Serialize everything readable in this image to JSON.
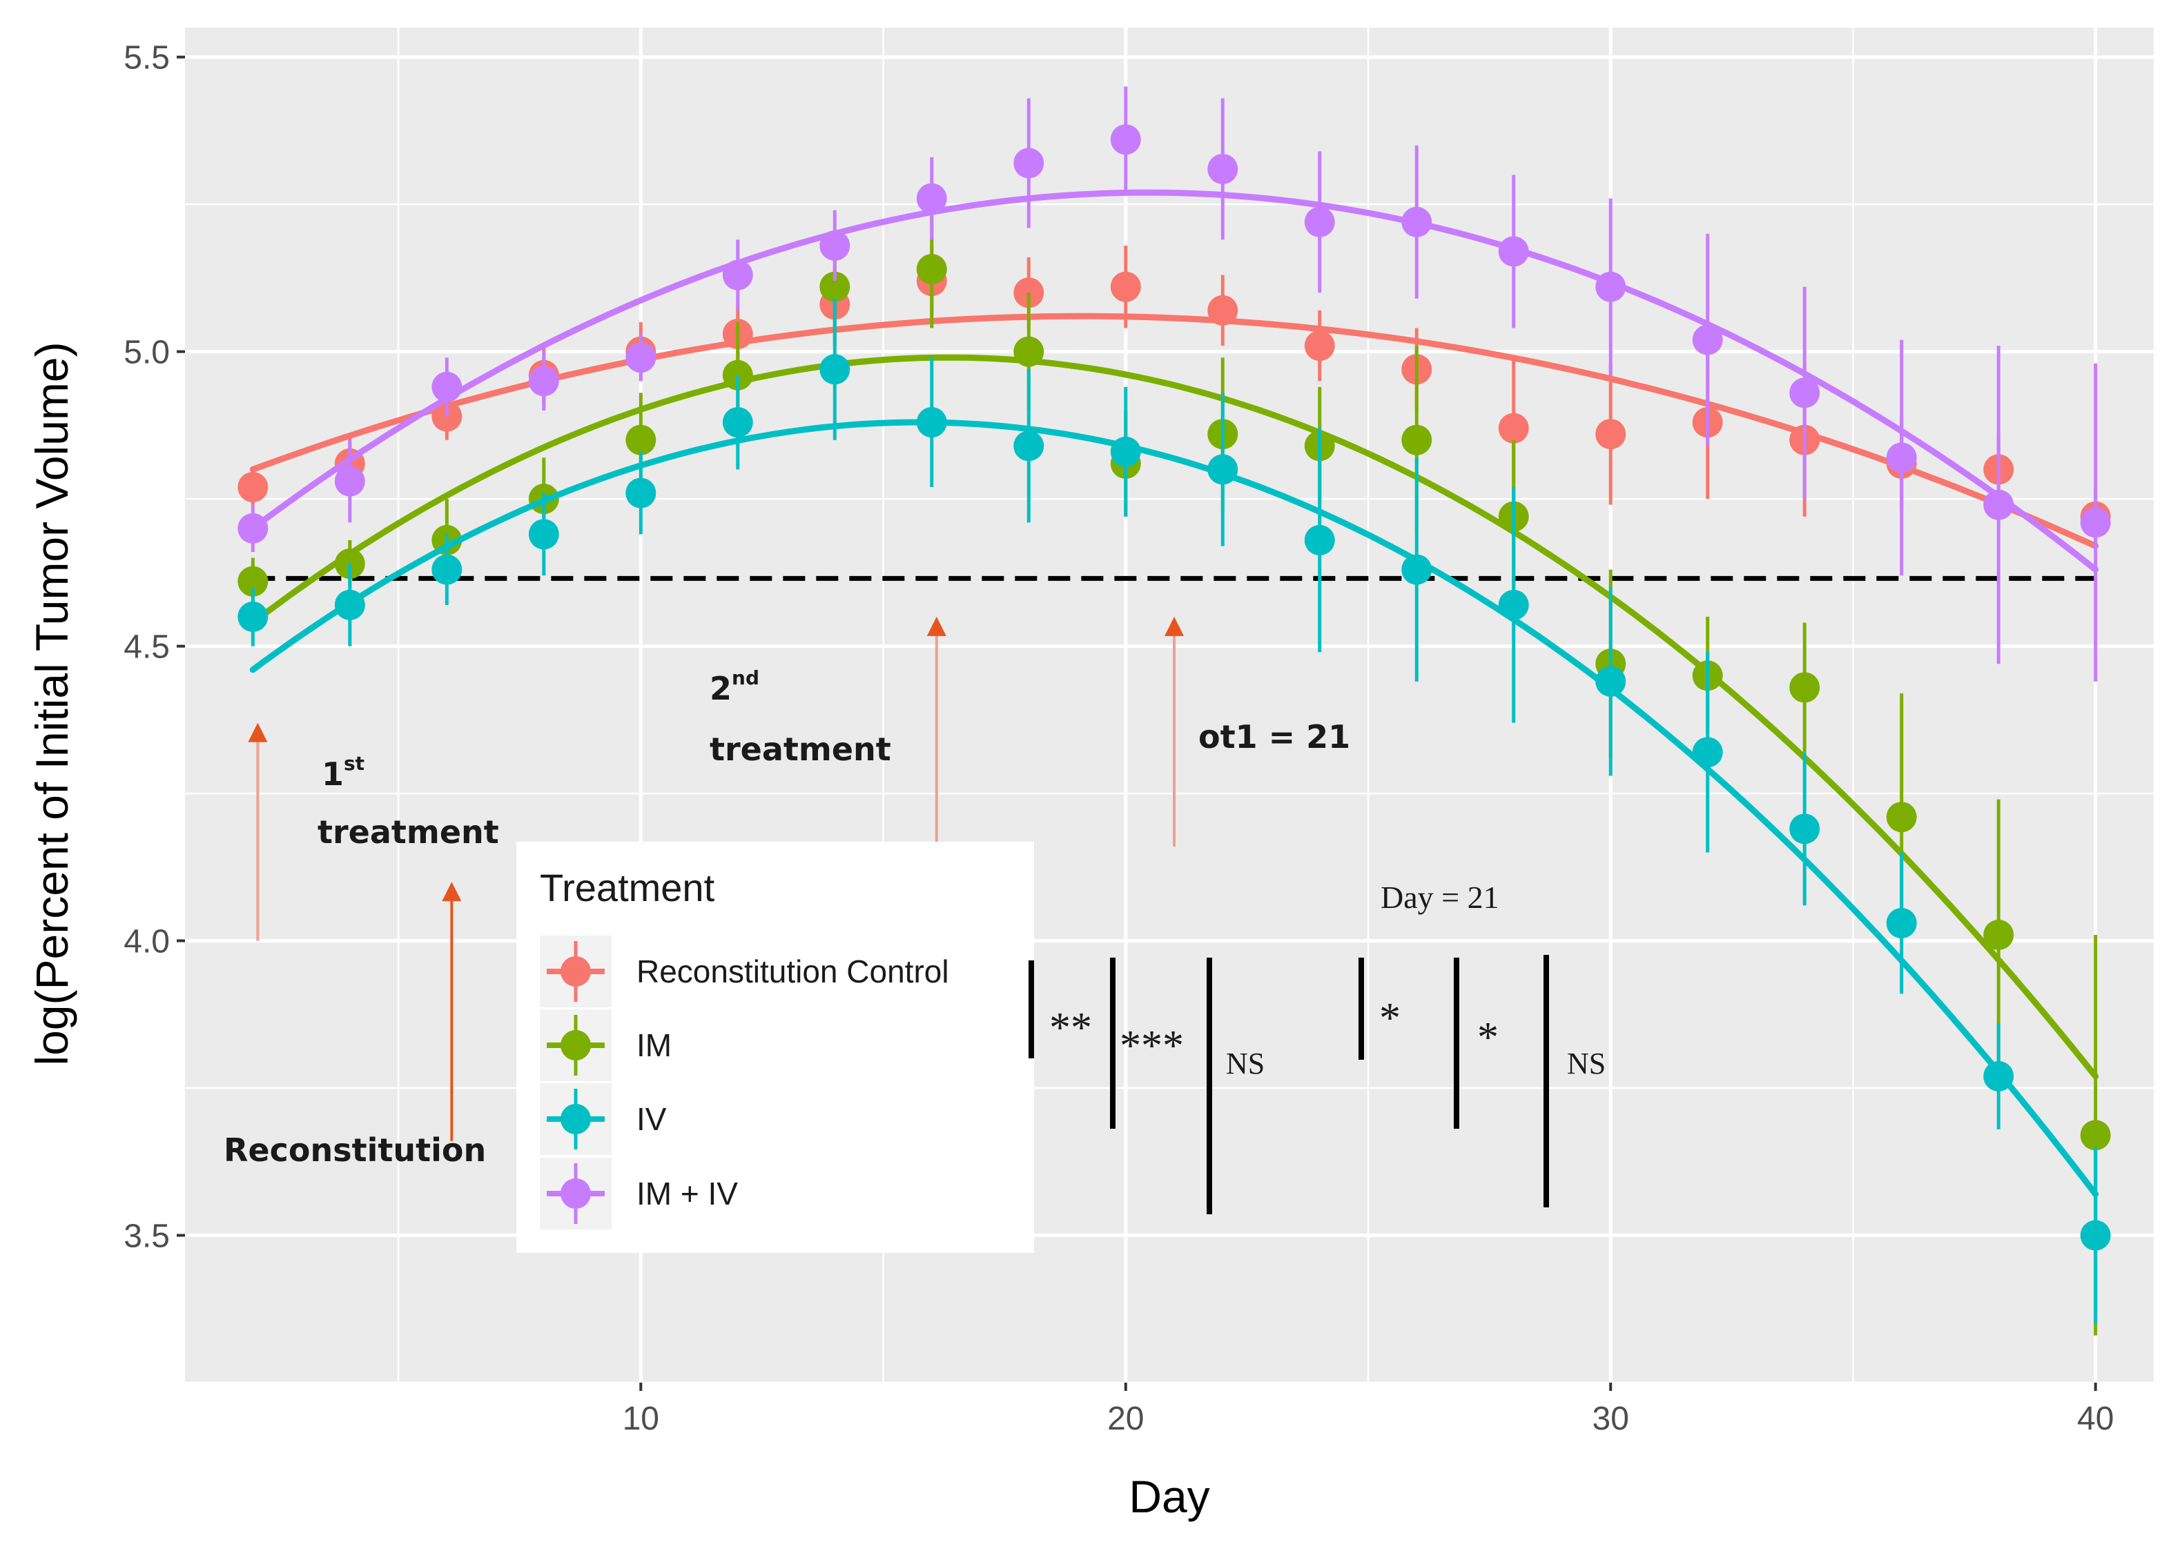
{
  "chart_data": {
    "type": "scatter",
    "xlabel": "Day",
    "ylabel": "log(Percent of Initial Tumor Volume)",
    "xlim": [
      0.6,
      41.2
    ],
    "ylim": [
      3.25,
      5.55
    ],
    "xticks": [
      10,
      20,
      30,
      40
    ],
    "yticks": [
      3.5,
      4.0,
      4.5,
      5.0,
      5.5
    ],
    "xtick_labels": [
      "10",
      "20",
      "30",
      "40"
    ],
    "ytick_labels": [
      "3.5",
      "4.0",
      "4.5",
      "5.0",
      "5.5"
    ],
    "grid": true,
    "reference_line": {
      "y": 4.615,
      "style": "dashed",
      "color": "#000000"
    },
    "legend": {
      "title": "Treatment",
      "position": "lower-left",
      "entries": [
        "Reconstitution Control",
        "IM",
        "IV",
        "IM + IV"
      ]
    },
    "series": [
      {
        "name": "Reconstitution Control",
        "color": "#F8766D",
        "x": [
          2,
          4,
          6,
          8,
          10,
          12,
          14,
          16,
          18,
          20,
          22,
          24,
          26,
          28,
          30,
          32,
          34,
          36,
          38,
          40
        ],
        "y": [
          4.77,
          4.81,
          4.89,
          4.96,
          5.0,
          5.03,
          5.08,
          5.12,
          5.1,
          5.11,
          5.07,
          5.01,
          4.97,
          4.87,
          4.86,
          4.88,
          4.85,
          4.81,
          4.8,
          4.72
        ],
        "err": [
          0.03,
          0.05,
          0.04,
          0.05,
          0.05,
          0.05,
          0.06,
          0.06,
          0.06,
          0.07,
          0.06,
          0.06,
          0.07,
          0.12,
          0.12,
          0.13,
          0.13,
          0.08,
          0.06,
          0.05
        ],
        "fit": {
          "x0": 2,
          "y0": 4.8,
          "x1": 19.5,
          "y1": 5.06,
          "x2": 40,
          "y2": 4.67
        }
      },
      {
        "name": "IM",
        "color": "#7CAE00",
        "x": [
          2,
          4,
          6,
          8,
          10,
          12,
          14,
          16,
          18,
          20,
          22,
          24,
          26,
          28,
          30,
          32,
          34,
          36,
          38,
          40
        ],
        "y": [
          4.61,
          4.64,
          4.68,
          4.75,
          4.85,
          4.96,
          5.11,
          5.14,
          5.0,
          4.81,
          4.86,
          4.84,
          4.85,
          4.72,
          4.47,
          4.45,
          4.43,
          4.21,
          4.01,
          3.67
        ],
        "err": [
          0.04,
          0.04,
          0.07,
          0.07,
          0.08,
          0.09,
          0.1,
          0.1,
          0.1,
          0.09,
          0.13,
          0.1,
          0.16,
          0.13,
          0.16,
          0.1,
          0.11,
          0.21,
          0.23,
          0.34
        ],
        "fit": {
          "x0": 2,
          "y0": 4.54,
          "x1": 16.5,
          "y1": 4.99,
          "x2": 40,
          "y2": 3.77
        }
      },
      {
        "name": "IV",
        "color": "#00BFC4",
        "x": [
          2,
          4,
          6,
          8,
          10,
          12,
          14,
          16,
          18,
          20,
          22,
          24,
          26,
          28,
          30,
          32,
          34,
          36,
          38,
          40
        ],
        "y": [
          4.55,
          4.57,
          4.63,
          4.69,
          4.76,
          4.88,
          4.97,
          4.88,
          4.84,
          4.83,
          4.8,
          4.68,
          4.63,
          4.57,
          4.44,
          4.32,
          4.19,
          4.03,
          3.77,
          3.5
        ],
        "err": [
          0.05,
          0.07,
          0.06,
          0.07,
          0.07,
          0.08,
          0.12,
          0.11,
          0.13,
          0.11,
          0.13,
          0.19,
          0.19,
          0.2,
          0.16,
          0.17,
          0.13,
          0.12,
          0.09,
          0.15
        ],
        "fit": {
          "x0": 2,
          "y0": 4.46,
          "x1": 15.5,
          "y1": 4.88,
          "x2": 40,
          "y2": 3.57
        }
      },
      {
        "name": "IM + IV",
        "color": "#C77CFF",
        "x": [
          2,
          4,
          6,
          8,
          10,
          12,
          14,
          16,
          18,
          20,
          22,
          24,
          26,
          28,
          30,
          32,
          34,
          36,
          38,
          40
        ],
        "y": [
          4.7,
          4.78,
          4.94,
          4.95,
          4.99,
          5.13,
          5.18,
          5.26,
          5.32,
          5.36,
          5.31,
          5.22,
          5.22,
          5.17,
          5.11,
          5.02,
          4.93,
          4.82,
          4.74,
          4.71
        ],
        "err": [
          0.04,
          0.07,
          0.05,
          0.05,
          0.04,
          0.06,
          0.06,
          0.07,
          0.11,
          0.09,
          0.12,
          0.12,
          0.13,
          0.13,
          0.15,
          0.18,
          0.18,
          0.2,
          0.27,
          0.27
        ],
        "fit": {
          "x0": 2,
          "y0": 4.7,
          "x1": 20.5,
          "y1": 5.27,
          "x2": 40,
          "y2": 4.63
        }
      }
    ]
  },
  "annotations": {
    "first_treatment_num": "1",
    "first_treatment_sup": "st",
    "first_treatment_word": "treatment",
    "reconstitution": "Reconstitution",
    "second_treatment_num": "2",
    "second_treatment_sup": "nd",
    "second_treatment_word": "treatment",
    "ot1": "ot1 = 21",
    "day21": "Day = 21",
    "sig_1": "**",
    "sig_2": "***",
    "sig_3": "NS",
    "sig_4": "*",
    "sig_5": "*",
    "sig_6": "NS"
  },
  "colors": {
    "panel_bg": "#EBEBEB",
    "grid": "#FFFFFF",
    "arrow": "#E8541E",
    "arrow_faded": "#F0A090"
  }
}
